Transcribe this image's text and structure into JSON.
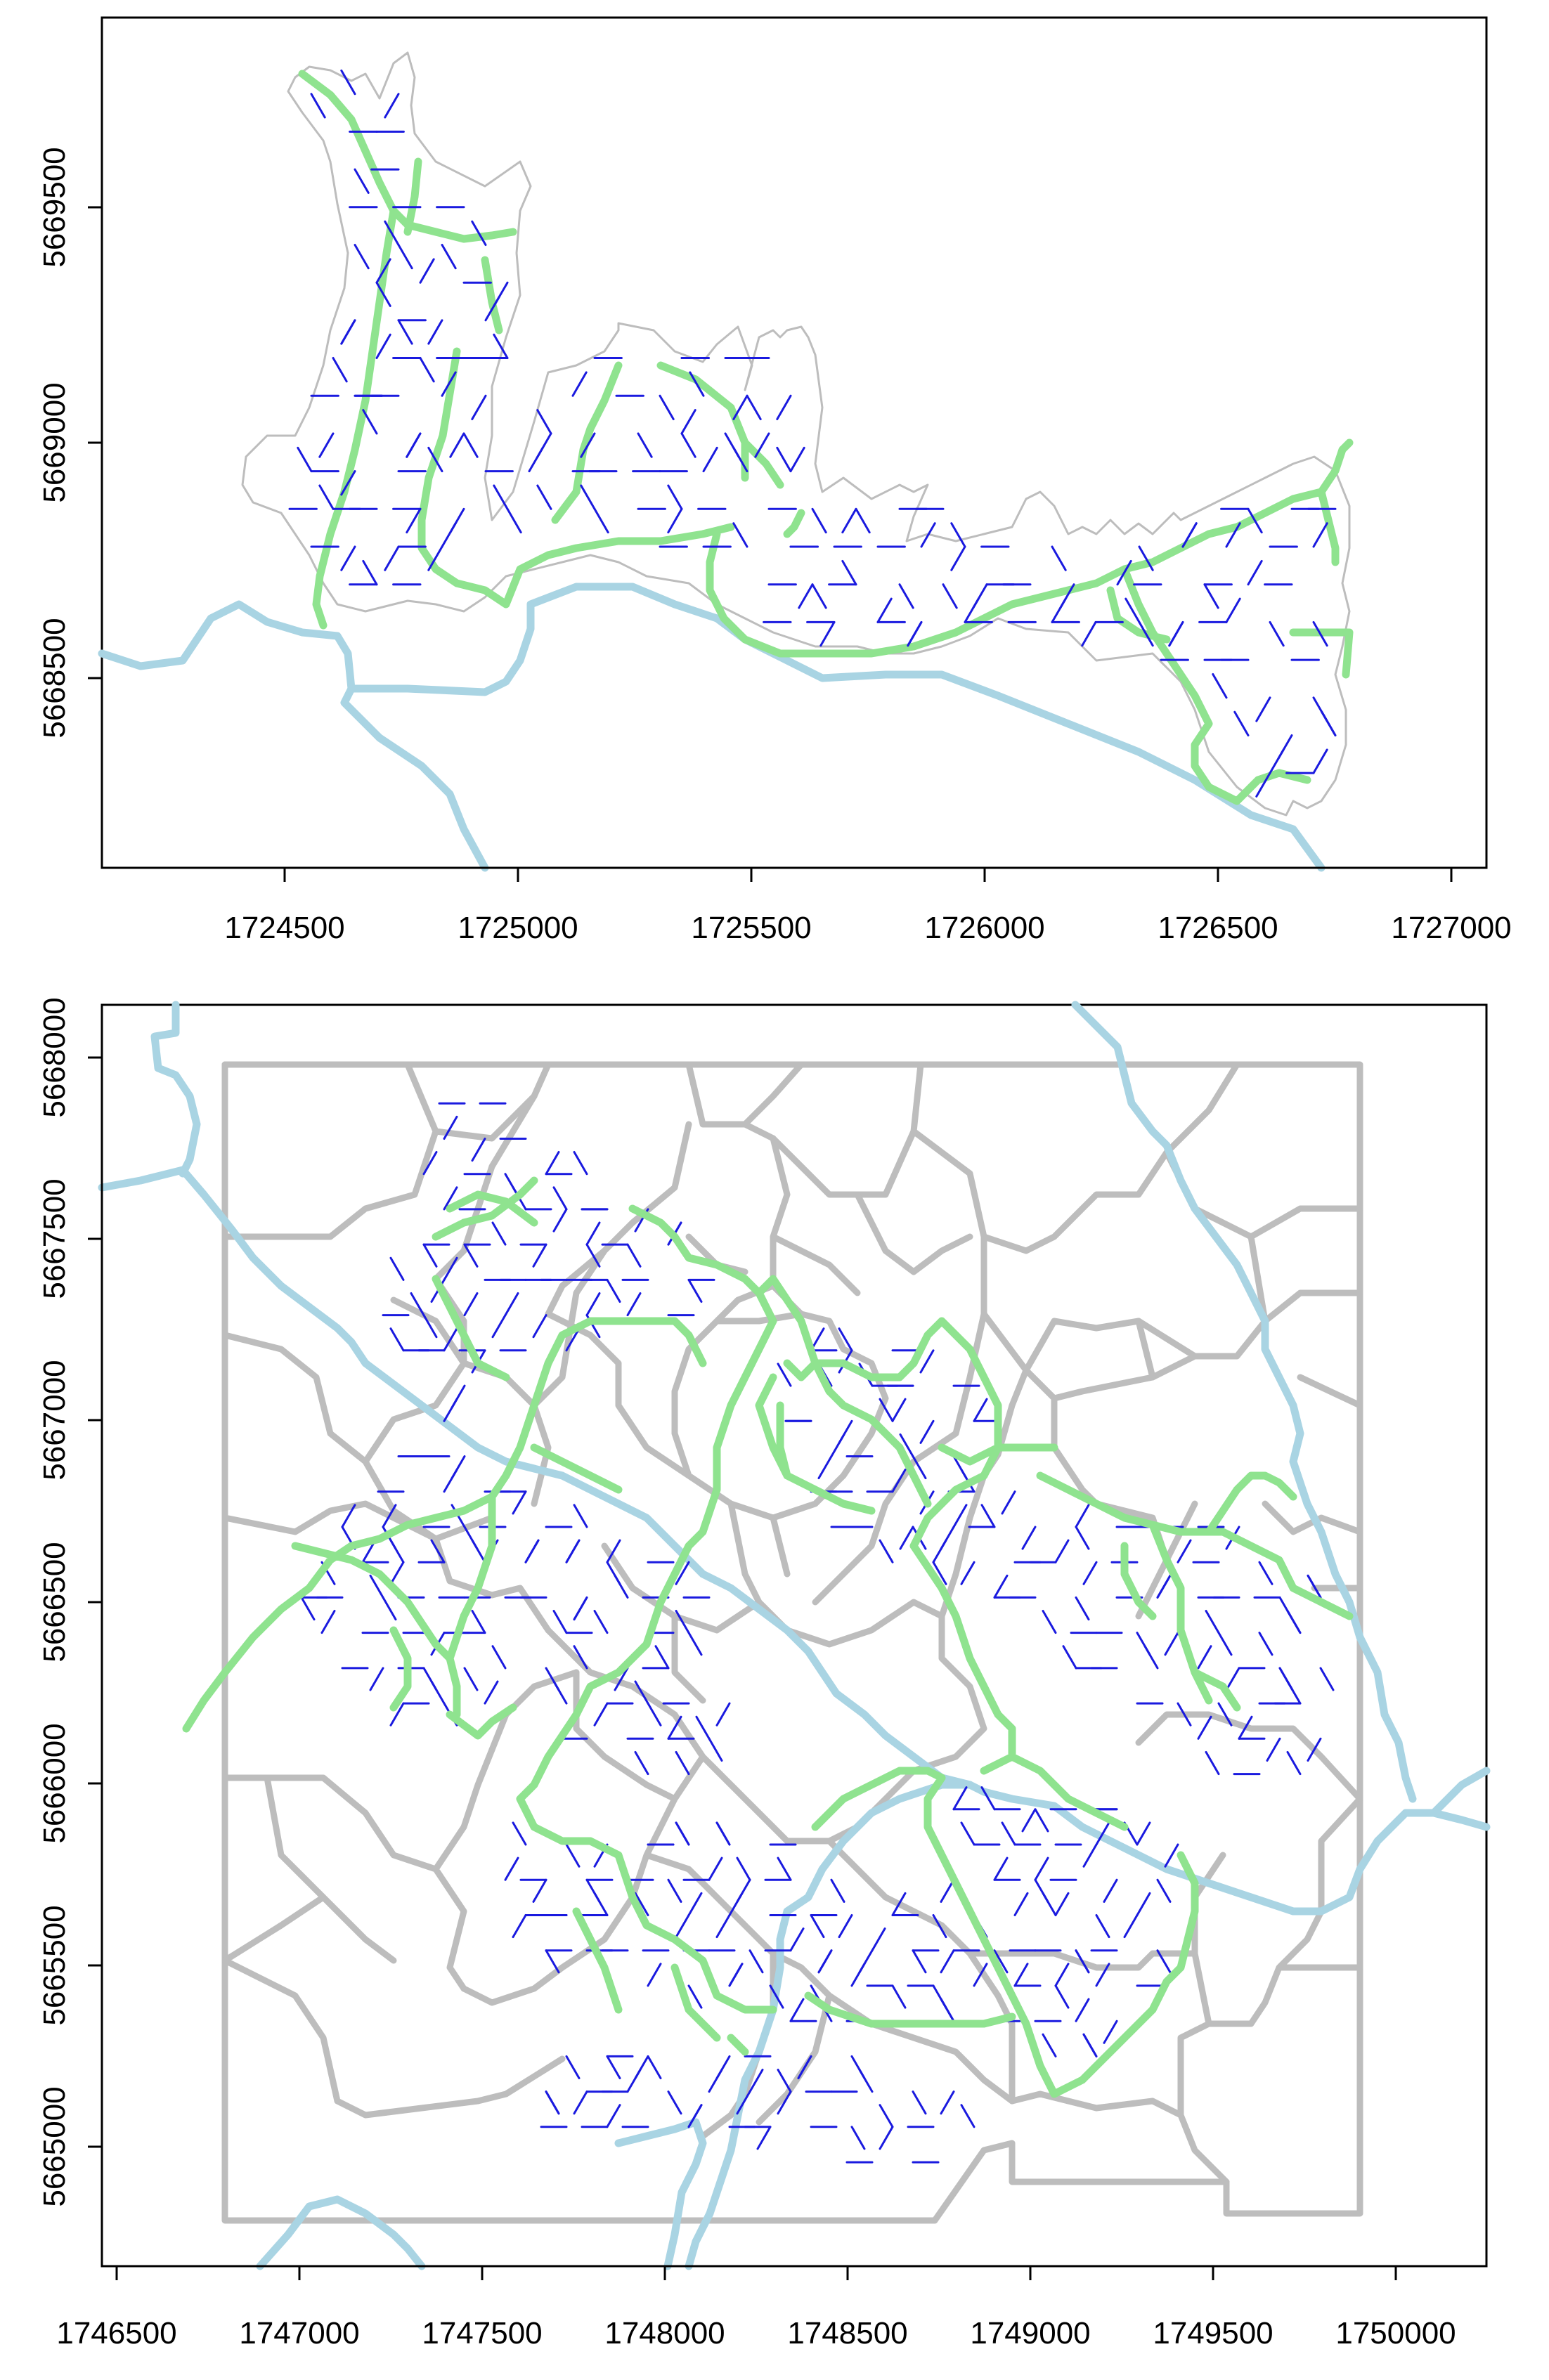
{
  "map_top": {
    "x_ticks": [
      "1724500",
      "1725000",
      "1725500",
      "1726000",
      "1726500",
      "1727000"
    ],
    "y_ticks": [
      "5668500",
      "5669000",
      "5669500"
    ]
  },
  "map_bottom": {
    "x_ticks": [
      "1746500",
      "1747000",
      "1747500",
      "1748000",
      "1748500",
      "1749000",
      "1749500",
      "1750000"
    ],
    "y_ticks": [
      "5665000",
      "5665500",
      "5666000",
      "5666500",
      "5667000",
      "5667500",
      "5668000"
    ]
  },
  "colors": {
    "boundary": "#bdbdbd",
    "river": "#a9d4e3",
    "green_path": "#8fe38f",
    "blue_network": "#1a1adf"
  }
}
